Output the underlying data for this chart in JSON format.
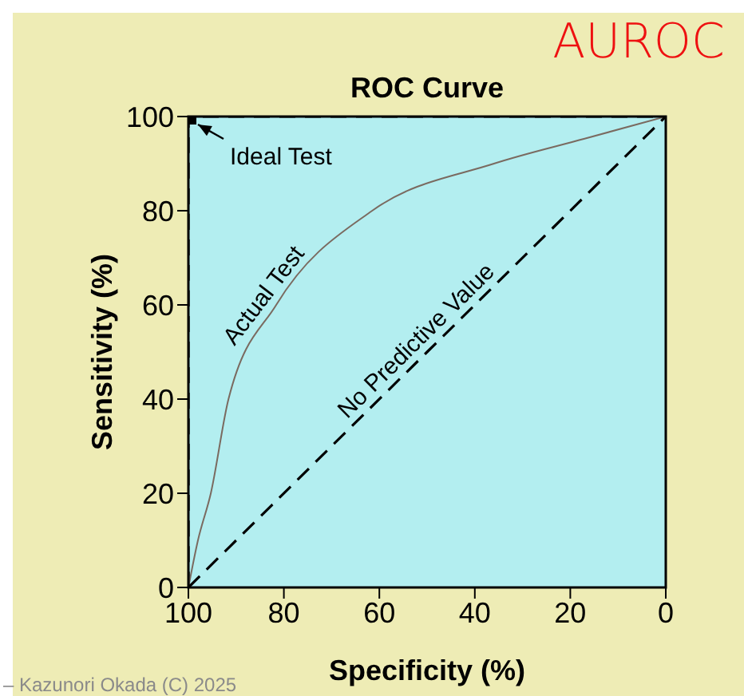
{
  "chart_data": {
    "type": "line",
    "title": "ROC Curve",
    "xlabel": "Specificity (%)",
    "ylabel": "Sensitivity (%)",
    "xlim": [
      100,
      0
    ],
    "xticks": [
      100,
      80,
      60,
      40,
      20,
      0
    ],
    "ylim": [
      0,
      100
    ],
    "yticks": [
      0,
      20,
      40,
      60,
      80,
      100
    ],
    "legend": false,
    "annotations": [
      "AUROC",
      {
        "text": "Ideal Test",
        "x": 100,
        "y": 100
      },
      "– Kazunori Okada (C) 2025"
    ],
    "series": [
      {
        "color": "#000000",
        "line_style": "dashed",
        "x": [
          100,
          100,
          0
        ],
        "values": [
          0,
          100,
          100
        ]
      },
      {
        "type": "scatter",
        "color": "#000000",
        "marker": "square",
        "x": [
          100
        ],
        "values": [
          100
        ]
      },
      {
        "name": "Actual Test",
        "color": "#7a6a60",
        "line_style": "solid",
        "x": [
          100,
          98,
          95.3,
          91.6,
          81.6,
          61.5,
          36,
          17,
          0
        ],
        "values": [
          0,
          10,
          20,
          40,
          60,
          80,
          90,
          95.3,
          100
        ]
      },
      {
        "name": "No Predictive Value",
        "color": "#000000",
        "line_style": "dashed",
        "x": [
          100,
          50,
          0
        ],
        "values": [
          0,
          50,
          100
        ]
      }
    ]
  }
}
